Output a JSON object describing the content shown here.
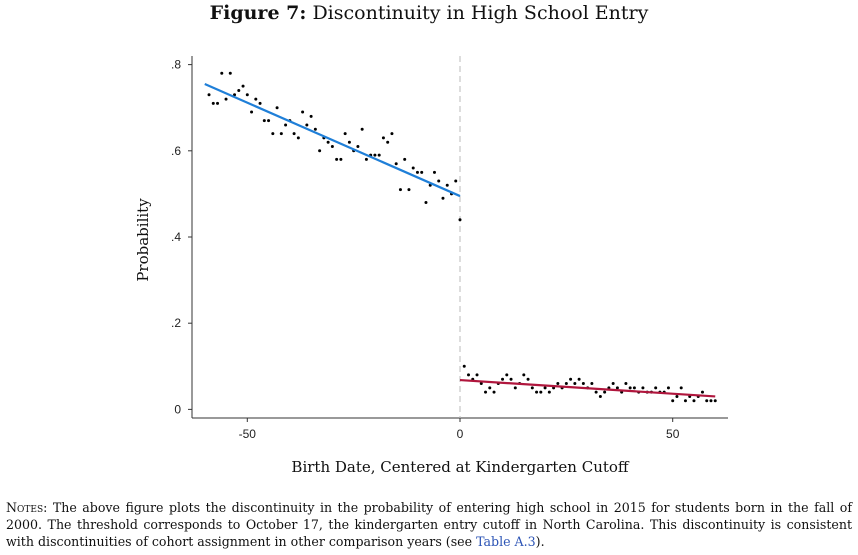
{
  "figure": {
    "label": "Figure 7:",
    "title": "Discontinuity in High School Entry"
  },
  "notes": {
    "lead": "Notes:",
    "text_before_link": "The above figure plots the discontinuity in the probability of entering high school in 2015 for students born in the fall of 2000. The threshold corresponds to October 17, the kindergarten entry cutoff in North Carolina. This discontinuity is consistent with discontinuities of cohort assignment in other comparison years (see",
    "link": "Table A.3",
    "text_after_link": ")."
  },
  "chart_data": {
    "type": "scatter",
    "title": "",
    "xlabel": "Birth Date, Centered at Kindergarten Cutoff",
    "ylabel": "Probability",
    "xlim": [
      -63,
      63
    ],
    "ylim": [
      -0.02,
      0.82
    ],
    "xticks": [
      {
        "value": -50,
        "label": "-50"
      },
      {
        "value": 0,
        "label": "0"
      },
      {
        "value": 50,
        "label": "50"
      }
    ],
    "yticks": [
      {
        "value": 0,
        "label": "0"
      },
      {
        "value": 0.2,
        "label": ".2"
      },
      {
        "value": 0.4,
        "label": ".4"
      },
      {
        "value": 0.6,
        "label": ".6"
      },
      {
        "value": 0.8,
        "label": ".8"
      }
    ],
    "cutoff": 0,
    "grid": false,
    "colors": {
      "points": "#000000",
      "fit_left": "#1f7fd8",
      "fit_right": "#b0163d",
      "cutoff_line": "#bbbbbb",
      "axis": "#333333"
    },
    "points": [
      [
        -59,
        0.73
      ],
      [
        -58,
        0.71
      ],
      [
        -57,
        0.71
      ],
      [
        -56,
        0.78
      ],
      [
        -55,
        0.72
      ],
      [
        -54,
        0.78
      ],
      [
        -53,
        0.73
      ],
      [
        -52,
        0.74
      ],
      [
        -51,
        0.75
      ],
      [
        -50,
        0.73
      ],
      [
        -49,
        0.69
      ],
      [
        -48,
        0.72
      ],
      [
        -47,
        0.71
      ],
      [
        -46,
        0.67
      ],
      [
        -45,
        0.67
      ],
      [
        -44,
        0.64
      ],
      [
        -43,
        0.7
      ],
      [
        -42,
        0.64
      ],
      [
        -41,
        0.66
      ],
      [
        -40,
        0.67
      ],
      [
        -39,
        0.64
      ],
      [
        -38,
        0.63
      ],
      [
        -37,
        0.69
      ],
      [
        -36,
        0.66
      ],
      [
        -35,
        0.68
      ],
      [
        -34,
        0.65
      ],
      [
        -33,
        0.6
      ],
      [
        -32,
        0.63
      ],
      [
        -31,
        0.62
      ],
      [
        -30,
        0.61
      ],
      [
        -29,
        0.58
      ],
      [
        -28,
        0.58
      ],
      [
        -27,
        0.64
      ],
      [
        -26,
        0.62
      ],
      [
        -25,
        0.6
      ],
      [
        -24,
        0.61
      ],
      [
        -23,
        0.65
      ],
      [
        -22,
        0.58
      ],
      [
        -21,
        0.59
      ],
      [
        -20,
        0.59
      ],
      [
        -19,
        0.59
      ],
      [
        -18,
        0.63
      ],
      [
        -17,
        0.62
      ],
      [
        -16,
        0.64
      ],
      [
        -15,
        0.57
      ],
      [
        -14,
        0.51
      ],
      [
        -13,
        0.58
      ],
      [
        -12,
        0.51
      ],
      [
        -11,
        0.56
      ],
      [
        -10,
        0.55
      ],
      [
        -9,
        0.55
      ],
      [
        -8,
        0.48
      ],
      [
        -7,
        0.52
      ],
      [
        -6,
        0.55
      ],
      [
        -5,
        0.53
      ],
      [
        -4,
        0.49
      ],
      [
        -3,
        0.52
      ],
      [
        -2,
        0.5
      ],
      [
        -1,
        0.53
      ],
      [
        0,
        0.44
      ],
      [
        1,
        0.1
      ],
      [
        2,
        0.08
      ],
      [
        3,
        0.07
      ],
      [
        4,
        0.08
      ],
      [
        5,
        0.06
      ],
      [
        6,
        0.04
      ],
      [
        7,
        0.05
      ],
      [
        8,
        0.04
      ],
      [
        9,
        0.06
      ],
      [
        10,
        0.07
      ],
      [
        11,
        0.08
      ],
      [
        12,
        0.07
      ],
      [
        13,
        0.05
      ],
      [
        14,
        0.06
      ],
      [
        15,
        0.08
      ],
      [
        16,
        0.07
      ],
      [
        17,
        0.05
      ],
      [
        18,
        0.04
      ],
      [
        19,
        0.04
      ],
      [
        20,
        0.05
      ],
      [
        21,
        0.04
      ],
      [
        22,
        0.05
      ],
      [
        23,
        0.06
      ],
      [
        24,
        0.05
      ],
      [
        25,
        0.06
      ],
      [
        26,
        0.07
      ],
      [
        27,
        0.06
      ],
      [
        28,
        0.07
      ],
      [
        29,
        0.06
      ],
      [
        30,
        0.05
      ],
      [
        31,
        0.06
      ],
      [
        32,
        0.04
      ],
      [
        33,
        0.03
      ],
      [
        34,
        0.04
      ],
      [
        35,
        0.05
      ],
      [
        36,
        0.06
      ],
      [
        37,
        0.05
      ],
      [
        38,
        0.04
      ],
      [
        39,
        0.06
      ],
      [
        40,
        0.05
      ],
      [
        41,
        0.05
      ],
      [
        42,
        0.04
      ],
      [
        43,
        0.05
      ],
      [
        44,
        0.04
      ],
      [
        45,
        0.04
      ],
      [
        46,
        0.05
      ],
      [
        47,
        0.04
      ],
      [
        48,
        0.04
      ],
      [
        49,
        0.05
      ],
      [
        50,
        0.02
      ],
      [
        51,
        0.03
      ],
      [
        52,
        0.05
      ],
      [
        53,
        0.02
      ],
      [
        54,
        0.03
      ],
      [
        55,
        0.02
      ],
      [
        56,
        0.03
      ],
      [
        57,
        0.04
      ],
      [
        58,
        0.02
      ],
      [
        59,
        0.02
      ],
      [
        60,
        0.02
      ]
    ],
    "fits": [
      {
        "name": "",
        "color": "#1f7fd8",
        "x": [
          -60,
          0
        ],
        "y": [
          0.755,
          0.495
        ]
      },
      {
        "name": "",
        "color": "#b0163d",
        "x": [
          0,
          60
        ],
        "y": [
          0.068,
          0.03
        ]
      }
    ]
  }
}
